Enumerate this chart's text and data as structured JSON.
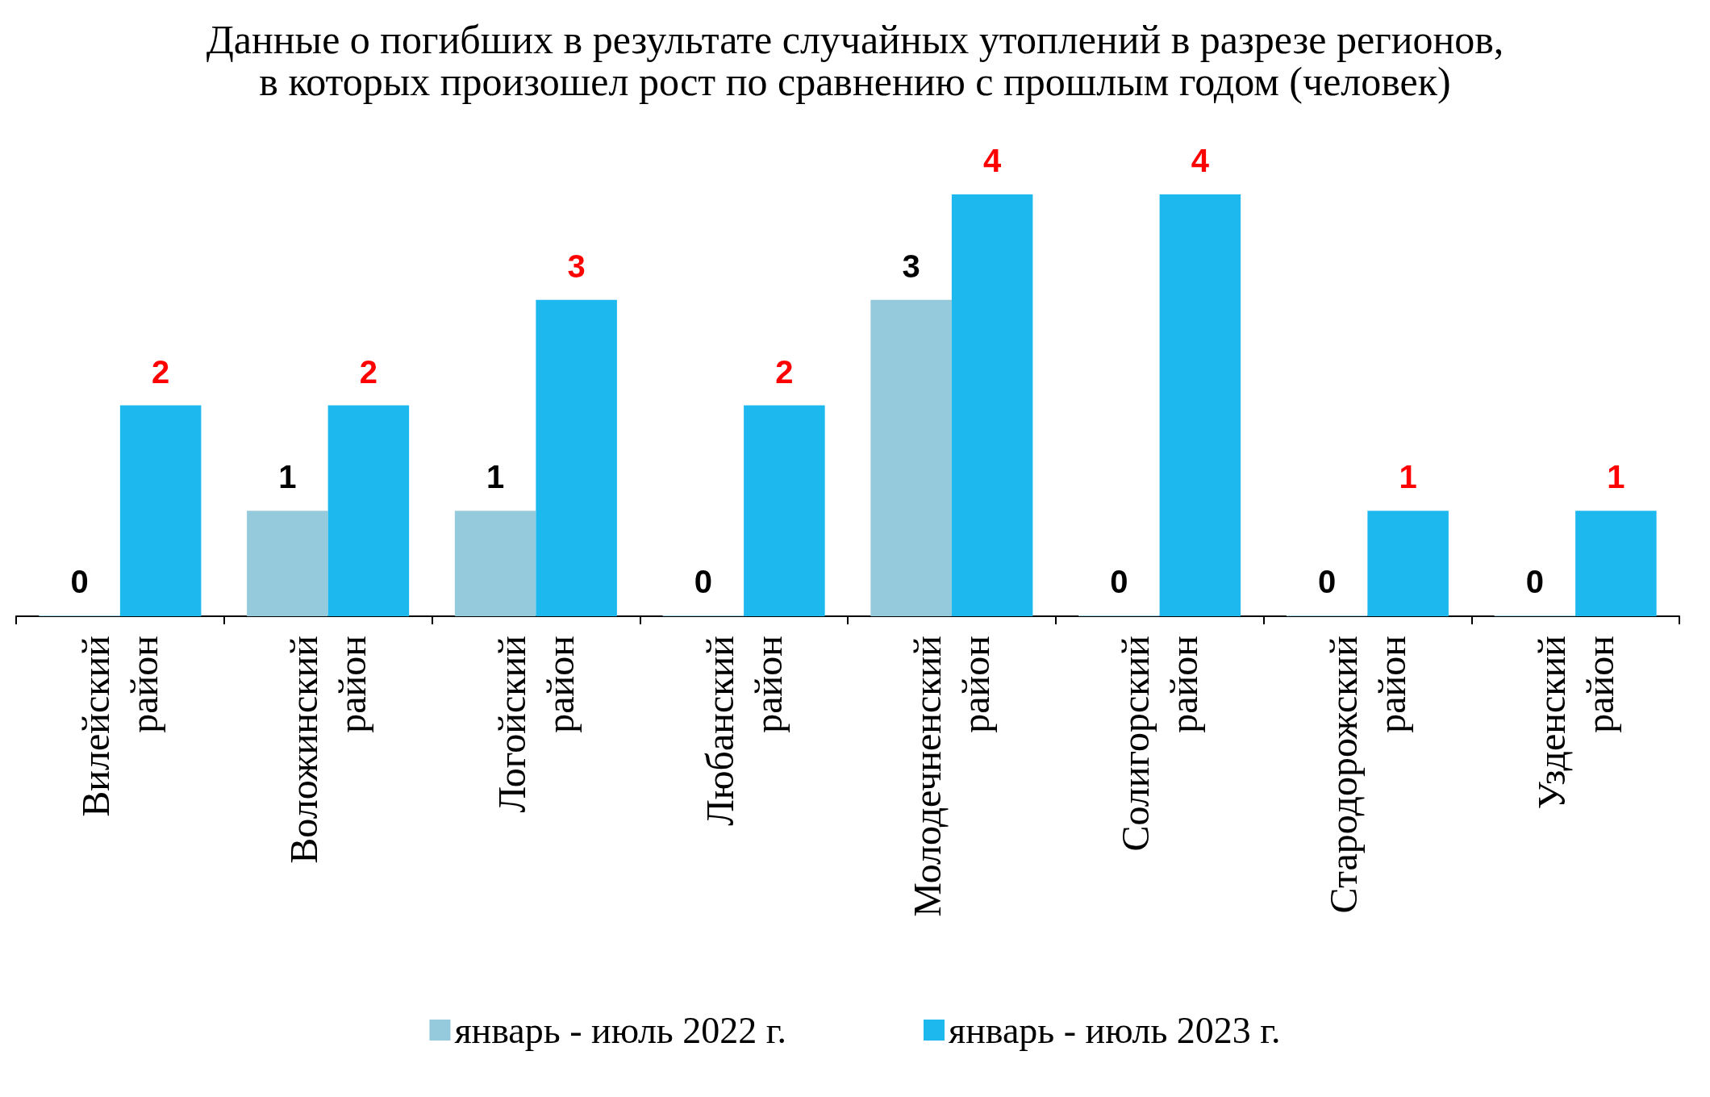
{
  "chart_data": {
    "type": "bar",
    "title": "Данные о погибших в результате случайных утоплений в разрезе регионов,\nв которых произошел рост по сравнению с прошлым годом (человек)",
    "categories": [
      "Вилейский\nрайон",
      "Воложинский\nрайон",
      "Логойский\nрайон",
      "Любанский\nрайон",
      "Молодечненский\nрайон",
      "Солигорский\nрайон",
      "Стародорожский\nрайон",
      "Узденский\nрайон"
    ],
    "series": [
      {
        "name": "январь - июль 2022 г.",
        "color": "#94cadb",
        "values": [
          0,
          1,
          1,
          0,
          3,
          0,
          0,
          0
        ]
      },
      {
        "name": "январь - июль 2023 г.",
        "color": "#1cb8ee",
        "values": [
          2,
          2,
          3,
          2,
          4,
          4,
          1,
          1
        ]
      }
    ],
    "data_labels": true,
    "legend": "bottom"
  }
}
